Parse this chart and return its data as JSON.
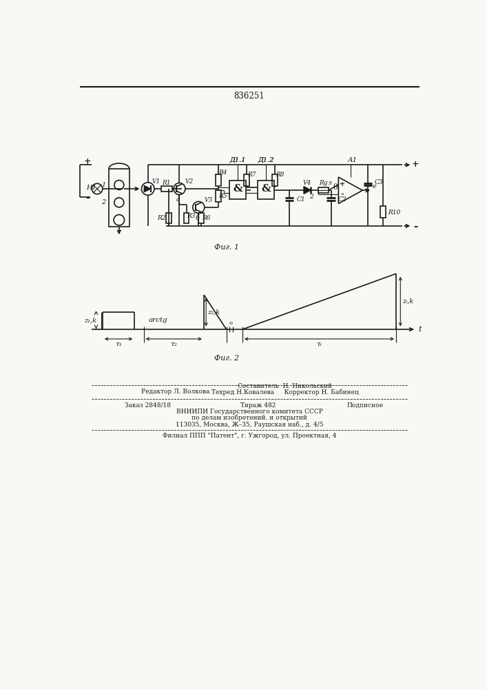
{
  "title_number": "836251",
  "fig1_label": "Фиг. 1",
  "fig2_label": "Фиг. 2",
  "bg_color": "#f8f8f5",
  "line_color": "#1a1a1a",
  "footer_editor": "Редактор Л. Волкова",
  "footer_comp": "Составитель  Н. Никольский",
  "footer_tech": "Техред Н.Ковалева     Корректор Н. Бабинец",
  "footer_order": "Заказ 2848/18",
  "footer_tirazh": "Тираж 482",
  "footer_podp": "Подписное",
  "footer_vniip1": "ВНИИПИ Государственного комитета СССР",
  "footer_vniip2": "по делам изобретений. и открытий",
  "footer_vniip3": "113035, Москва, Ж–35, Раушская наб., д. 4/5",
  "footer_filial": "Филиал ППП \"Патент\", г. Ужгород, ул. Проектная, 4"
}
